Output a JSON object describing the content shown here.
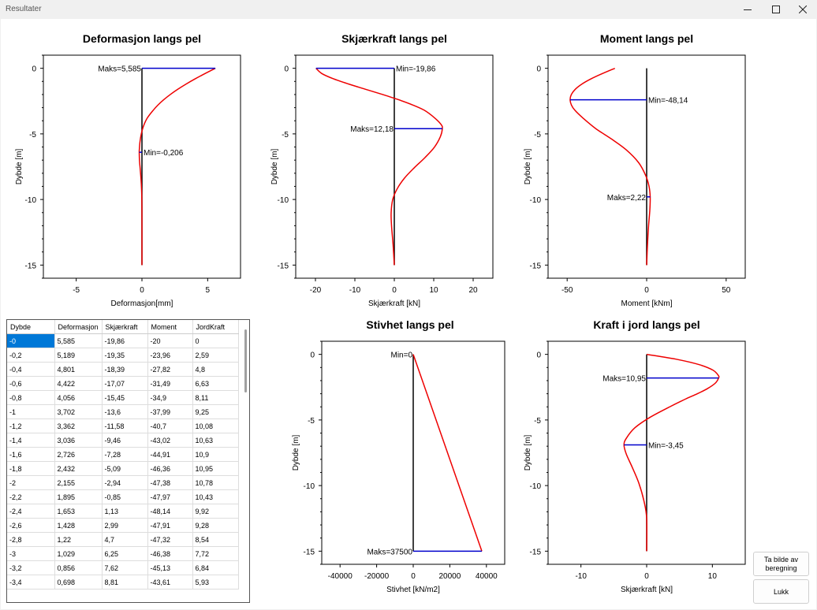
{
  "window": {
    "title": "Resultater"
  },
  "buttons": {
    "snapshot": "Ta bilde av beregning",
    "close": "Lukk"
  },
  "table": {
    "headers": [
      "Dybde",
      "Deformasjon",
      "Skjærkraft",
      "Moment",
      "JordKraft"
    ],
    "rows": [
      [
        "-0",
        "5,585",
        "-19,86",
        "-20",
        "0"
      ],
      [
        "-0,2",
        "5,189",
        "-19,35",
        "-23,96",
        "2,59"
      ],
      [
        "-0,4",
        "4,801",
        "-18,39",
        "-27,82",
        "4,8"
      ],
      [
        "-0,6",
        "4,422",
        "-17,07",
        "-31,49",
        "6,63"
      ],
      [
        "-0,8",
        "4,056",
        "-15,45",
        "-34,9",
        "8,11"
      ],
      [
        "-1",
        "3,702",
        "-13,6",
        "-37,99",
        "9,25"
      ],
      [
        "-1,2",
        "3,362",
        "-11,58",
        "-40,7",
        "10,08"
      ],
      [
        "-1,4",
        "3,036",
        "-9,46",
        "-43,02",
        "10,63"
      ],
      [
        "-1,6",
        "2,726",
        "-7,28",
        "-44,91",
        "10,9"
      ],
      [
        "-1,8",
        "2,432",
        "-5,09",
        "-46,36",
        "10,95"
      ],
      [
        "-2",
        "2,155",
        "-2,94",
        "-47,38",
        "10,78"
      ],
      [
        "-2,2",
        "1,895",
        "-0,85",
        "-47,97",
        "10,43"
      ],
      [
        "-2,4",
        "1,653",
        "1,13",
        "-48,14",
        "9,92"
      ],
      [
        "-2,6",
        "1,428",
        "2,99",
        "-47,91",
        "9,28"
      ],
      [
        "-2,8",
        "1,22",
        "4,7",
        "-47,32",
        "8,54"
      ],
      [
        "-3",
        "1,029",
        "6,25",
        "-46,38",
        "7,72"
      ],
      [
        "-3,2",
        "0,856",
        "7,62",
        "-45,13",
        "6,84"
      ],
      [
        "-3,4",
        "0,698",
        "8,81",
        "-43,61",
        "5,93"
      ]
    ]
  },
  "chart_data": [
    {
      "type": "line",
      "title": "Deformasjon langs pel",
      "xlabel": "Deformasjon[mm]",
      "ylabel": "Dybde [m]",
      "xlim": [
        -7.5,
        7.5
      ],
      "ylim": [
        -16,
        1
      ],
      "xticks": [
        -5,
        0,
        5
      ],
      "yticks": [
        0,
        -5,
        -10,
        -15
      ],
      "series": {
        "x": [
          5.585,
          4.801,
          4.056,
          3.362,
          2.726,
          2.155,
          1.653,
          1.22,
          0.856,
          0.4,
          0.12,
          -0.05,
          -0.15,
          -0.2,
          -0.206,
          -0.19,
          -0.14,
          -0.09,
          -0.05,
          -0.02,
          -0.005,
          0,
          0
        ],
        "y": [
          0,
          -0.4,
          -0.8,
          -1.2,
          -1.6,
          -2.0,
          -2.4,
          -2.8,
          -3.2,
          -3.8,
          -4.4,
          -5.0,
          -5.6,
          -6.2,
          -6.4,
          -7.0,
          -7.6,
          -8.2,
          -8.8,
          -9.5,
          -10.5,
          -12,
          -15
        ]
      },
      "markers": [
        {
          "label": "Maks=5,585",
          "x": 5.585,
          "y": 0
        },
        {
          "label": "Min=-0,206",
          "x": -0.206,
          "y": -6.4
        }
      ]
    },
    {
      "type": "line",
      "title": "Skjærkraft langs pel",
      "xlabel": "Skjærkraft [kN]",
      "ylabel": "Dybde [m]",
      "xlim": [
        -25,
        25
      ],
      "ylim": [
        -16,
        1
      ],
      "xticks": [
        -20,
        -10,
        0,
        10,
        20
      ],
      "yticks": [
        0,
        -5,
        -10,
        -15
      ],
      "series": {
        "x": [
          -19.86,
          -18.39,
          -15.45,
          -11.58,
          -7.28,
          -2.94,
          1.13,
          4.7,
          7.62,
          10.3,
          11.9,
          12.18,
          11.7,
          10.2,
          7.8,
          5.0,
          2.5,
          0.7,
          -0.4,
          -0.8,
          -0.7,
          -0.3,
          0
        ],
        "y": [
          0,
          -0.4,
          -0.8,
          -1.2,
          -1.6,
          -2.0,
          -2.4,
          -2.8,
          -3.2,
          -3.8,
          -4.3,
          -4.6,
          -5.2,
          -6.0,
          -6.8,
          -7.6,
          -8.4,
          -9.2,
          -10.0,
          -11.0,
          -12.0,
          -13.5,
          -15
        ]
      },
      "markers": [
        {
          "label": "Min=-19,86",
          "x": -19.86,
          "y": 0
        },
        {
          "label": "Maks=12,18",
          "x": 12.18,
          "y": -4.6
        }
      ]
    },
    {
      "type": "line",
      "title": "Moment langs pel",
      "xlabel": "Moment [kNm]",
      "ylabel": "Dybde [m]",
      "xlim": [
        -62,
        62
      ],
      "ylim": [
        -16,
        1
      ],
      "xticks": [
        -50,
        0,
        50
      ],
      "yticks": [
        0,
        -5,
        -10,
        -15
      ],
      "series": {
        "x": [
          -20,
          -27.82,
          -34.9,
          -40.7,
          -44.91,
          -47.38,
          -48.14,
          -47.32,
          -45.13,
          -40,
          -32,
          -22,
          -13,
          -5,
          -0.5,
          1.5,
          2.22,
          2.0,
          1.2,
          0.5,
          0
        ],
        "y": [
          0,
          -0.4,
          -0.8,
          -1.2,
          -1.6,
          -2.0,
          -2.4,
          -2.8,
          -3.2,
          -3.8,
          -4.6,
          -5.4,
          -6.2,
          -7.2,
          -8.2,
          -9.0,
          -9.8,
          -10.8,
          -12.0,
          -13.5,
          -15
        ]
      },
      "markers": [
        {
          "label": "Min=-48,14",
          "x": -48.14,
          "y": -2.4
        },
        {
          "label": "Maks=2,22",
          "x": 2.22,
          "y": -9.8
        }
      ]
    },
    {
      "type": "line",
      "title": "Stivhet langs pel",
      "xlabel": "Stivhet [kN/m2]",
      "ylabel": "Dybde [m]",
      "xlim": [
        -50000,
        50000
      ],
      "ylim": [
        -16,
        1
      ],
      "xticks": [
        -40000,
        -20000,
        0,
        20000,
        40000
      ],
      "yticks": [
        0,
        -5,
        -10,
        -15
      ],
      "series": {
        "x": [
          0,
          37500
        ],
        "y": [
          0,
          -15
        ]
      },
      "markers": [
        {
          "label": "Min=0",
          "x": 0,
          "y": 0
        },
        {
          "label": "Maks=37500",
          "x": 37500,
          "y": -15
        }
      ]
    },
    {
      "type": "line",
      "title": "Kraft i jord langs pel",
      "xlabel": "Skjærkraft [kN]",
      "ylabel": "Dybde [m]",
      "xlim": [
        -15,
        15
      ],
      "ylim": [
        -16,
        1
      ],
      "xticks": [
        -10,
        0,
        10
      ],
      "yticks": [
        0,
        -5,
        -10,
        -15
      ],
      "series": {
        "x": [
          0,
          4.8,
          8.11,
          10.08,
          10.9,
          10.95,
          10.43,
          9.28,
          7.72,
          5.93,
          3.5,
          0.5,
          -1.8,
          -3.1,
          -3.45,
          -3.1,
          -2.2,
          -1.2,
          -0.4,
          0,
          0
        ],
        "y": [
          0,
          -0.4,
          -0.8,
          -1.2,
          -1.6,
          -1.8,
          -2.2,
          -2.6,
          -3.0,
          -3.4,
          -4.0,
          -4.8,
          -5.6,
          -6.4,
          -6.9,
          -7.6,
          -8.6,
          -9.8,
          -11.2,
          -12.5,
          -15
        ]
      },
      "markers": [
        {
          "label": "Maks=10,95",
          "x": 10.95,
          "y": -1.8
        },
        {
          "label": "Min=-3,45",
          "x": -3.45,
          "y": -6.9
        }
      ]
    }
  ],
  "colors": {
    "curve": "#ee0000",
    "marker": "#0000cc",
    "axis_line": "#000000",
    "selected_cell": "#0078d7"
  },
  "icons": {
    "minimize": "minimize-icon",
    "maximize": "maximize-icon",
    "close": "close-icon"
  }
}
